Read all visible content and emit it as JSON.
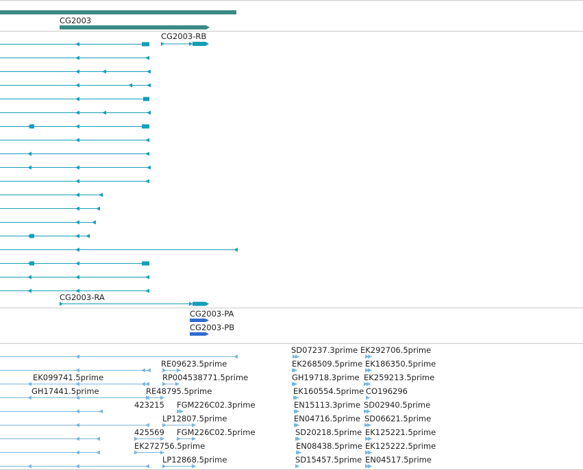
{
  "colors": {
    "gene": "#3a8a86",
    "transcript": "#159eb6",
    "protein": "#2f6bd1",
    "est": "#7bb6dd",
    "separator": "#c8c8c8",
    "label": "#222222"
  },
  "gene": {
    "label": "CG2003"
  },
  "transcripts": [
    {
      "label": "CG2003-RB"
    },
    {
      "label": "CG2003-RA"
    }
  ],
  "proteins": [
    {
      "label": "CG2003-PA"
    },
    {
      "label": "CG2003-PB"
    }
  ],
  "ests": [
    "RE09623.5prime",
    "RP004538771.5prime",
    "EK099741.5prime",
    "RE48795.5prime",
    "GH17441.5prime",
    "423215",
    "FGM226C02.3prime",
    "LP12807.5prime",
    "425569",
    "FGM226C02.5prime",
    "EK272756.5prime",
    "LP12868.5prime",
    "SD07237.3prime",
    "EK292706.5prime",
    "EK268509.5prime",
    "EK186350.5prime",
    "GH19718.3prime",
    "EK259213.5prime",
    "EK160554.5prime",
    "CO196296",
    "EN15113.3prime",
    "SD02940.5prime",
    "EN04716.5prime",
    "SD06621.5prime",
    "SD20218.5prime",
    "EK125221.5prime",
    "EN08438.5prime",
    "EK125222.5prime",
    "SD15457.5prime",
    "EN04517.5prime"
  ]
}
